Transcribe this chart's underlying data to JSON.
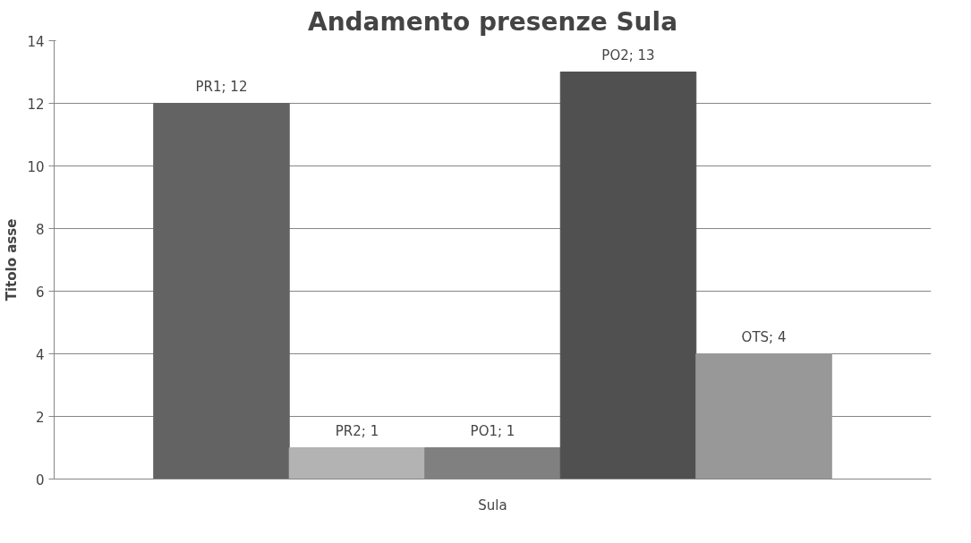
{
  "chart_data": {
    "type": "bar",
    "title": "Andamento presenze Sula",
    "ylabel": "Titolo asse",
    "categories": [
      "Sula"
    ],
    "series": [
      {
        "color": "#636363",
        "values": [
          12
        ],
        "value_labels": [
          "PR1; 12"
        ]
      },
      {
        "color": "#b3b3b3",
        "values": [
          1
        ],
        "value_labels": [
          "PR2; 1"
        ]
      },
      {
        "color": "#808080",
        "values": [
          1
        ],
        "value_labels": [
          "PO1; 1"
        ]
      },
      {
        "color": "#505050",
        "values": [
          13
        ],
        "value_labels": [
          "PO2; 13"
        ]
      },
      {
        "color": "#989898",
        "values": [
          4
        ],
        "value_labels": [
          "OTS; 4"
        ]
      }
    ],
    "ylim": [
      0,
      14
    ],
    "yticks": [
      0,
      2,
      4,
      6,
      8,
      10,
      12,
      14
    ],
    "grid": "y"
  }
}
